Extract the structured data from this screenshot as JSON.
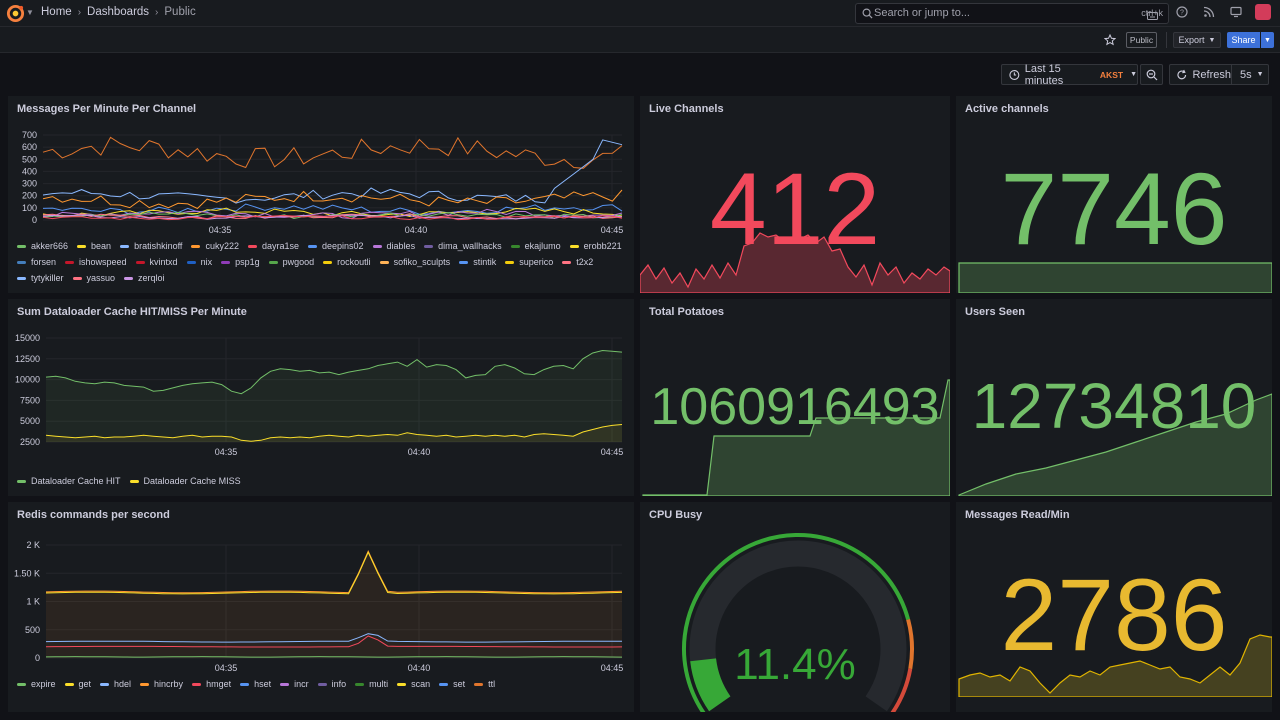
{
  "breadcrumbs": {
    "home": "Home",
    "dashboards": "Dashboards",
    "current": "Public"
  },
  "search": {
    "placeholder": "Search or jump to...",
    "shortcut": "ctrl+k"
  },
  "toolbar": {
    "public_badge": "Public",
    "export_label": "Export",
    "share_label": "Share"
  },
  "timepicker": {
    "range": "Last 15 minutes",
    "timezone": "AKST",
    "refresh_label": "Refresh",
    "refresh_interval": "5s"
  },
  "colors": {
    "accent_blue": "#3d71d9",
    "stat_green": "#73bf69",
    "stat_red": "#f2495c",
    "stat_yellow": "#fade2a",
    "grafana_orange": "#f5803e"
  },
  "panels": {
    "messages_per_minute": {
      "title": "Messages Per Minute Per Channel",
      "legend": [
        {
          "name": "akker666",
          "color": "#73bf69"
        },
        {
          "name": "bean",
          "color": "#fade2a"
        },
        {
          "name": "bratishkinoff",
          "color": "#8ab8ff"
        },
        {
          "name": "cuky222",
          "color": "#ff9830"
        },
        {
          "name": "dayra1se",
          "color": "#f2495c"
        },
        {
          "name": "deepins02",
          "color": "#5794f2"
        },
        {
          "name": "diables",
          "color": "#b877d9"
        },
        {
          "name": "dima_wallhacks",
          "color": "#705da0"
        },
        {
          "name": "ekajlumo",
          "color": "#37872d"
        },
        {
          "name": "erobb221",
          "color": "#fade2a"
        },
        {
          "name": "forsen",
          "color": "#447ebc"
        },
        {
          "name": "ishowspeed",
          "color": "#c4162a"
        },
        {
          "name": "kvintxd",
          "color": "#c4162a"
        },
        {
          "name": "nix",
          "color": "#1f60c4"
        },
        {
          "name": "psp1g",
          "color": "#8f3bb8"
        },
        {
          "name": "pwgood",
          "color": "#56a64b"
        },
        {
          "name": "rockoutli",
          "color": "#f2cc0c"
        },
        {
          "name": "sofiko_sculpts",
          "color": "#ffb357"
        },
        {
          "name": "stintik",
          "color": "#5794f2"
        },
        {
          "name": "superico",
          "color": "#f2cc0c"
        },
        {
          "name": "t2x2",
          "color": "#ff7383"
        },
        {
          "name": "tytykiller",
          "color": "#8ab8ff"
        },
        {
          "name": "yassuo",
          "color": "#ff7383"
        },
        {
          "name": "zerqloi",
          "color": "#ca95e5"
        }
      ],
      "y_ticks": [
        "700",
        "600",
        "500",
        "400",
        "300",
        "200",
        "100",
        "0"
      ],
      "x_ticks": [
        "04:35",
        "04:40",
        "04:45"
      ]
    },
    "dataloader_cache": {
      "title": "Sum Dataloader Cache HIT/MISS Per Minute",
      "legend": [
        {
          "name": "Dataloader Cache HIT",
          "color": "#73bf69"
        },
        {
          "name": "Dataloader Cache MISS",
          "color": "#fade2a"
        }
      ],
      "y_ticks": [
        "15000",
        "12500",
        "10000",
        "7500",
        "5000",
        "2500"
      ],
      "x_ticks": [
        "04:35",
        "04:40",
        "04:45"
      ]
    },
    "redis_commands": {
      "title": "Redis commands per second",
      "legend": [
        {
          "name": "expire",
          "color": "#73bf69"
        },
        {
          "name": "get",
          "color": "#fade2a"
        },
        {
          "name": "hdel",
          "color": "#8ab8ff"
        },
        {
          "name": "hincrby",
          "color": "#ff9830"
        },
        {
          "name": "hmget",
          "color": "#f2495c"
        },
        {
          "name": "hset",
          "color": "#5794f2"
        },
        {
          "name": "incr",
          "color": "#b877d9"
        },
        {
          "name": "info",
          "color": "#705da0"
        },
        {
          "name": "multi",
          "color": "#37872d"
        },
        {
          "name": "scan",
          "color": "#fade2a"
        },
        {
          "name": "set",
          "color": "#5794f2"
        },
        {
          "name": "ttl",
          "color": "#e0752d"
        }
      ],
      "y_ticks": [
        "2 K",
        "1.50 K",
        "1 K",
        "500",
        "0"
      ],
      "x_ticks": [
        "04:35",
        "04:40",
        "04:45"
      ]
    },
    "live_channels": {
      "title": "Live Channels",
      "value": "412"
    },
    "active_channels": {
      "title": "Active channels",
      "value": "7746"
    },
    "total_potatoes": {
      "title": "Total Potatoes",
      "value": "1060916493"
    },
    "users_seen": {
      "title": "Users Seen",
      "value": "12734810"
    },
    "cpu_busy": {
      "title": "CPU Busy",
      "value": "11.4%",
      "percent": 11.4
    },
    "messages_read": {
      "title": "Messages Read/Min",
      "value": "2786"
    }
  }
}
